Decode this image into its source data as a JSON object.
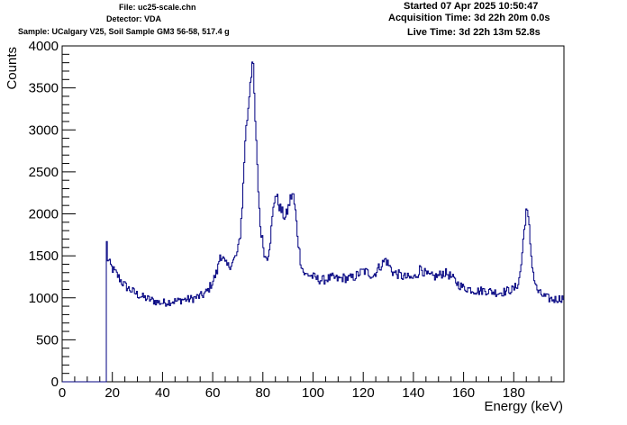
{
  "header": {
    "file": "File: uc25-scale.chn",
    "detector": "Detector: VDA",
    "sample": "Sample: UCalgary V25, Soil Sample GM3 56-58, 517.4 g",
    "started": "Started 07 Apr 2025 10:50:47",
    "acquisition": "Acquisition Time: 3d 22h 20m 0.0s",
    "live": "Live Time: 3d 22h 13m 52.8s"
  },
  "chart_data": {
    "type": "line",
    "xlabel": "Energy (keV)",
    "ylabel": "Counts",
    "xlim": [
      0,
      200
    ],
    "ylim": [
      0,
      4000
    ],
    "x_ticks": [
      0,
      20,
      40,
      60,
      80,
      100,
      120,
      140,
      160,
      180
    ],
    "y_ticks": [
      0,
      500,
      1000,
      1500,
      2000,
      2500,
      3000,
      3500,
      4000
    ],
    "line_color": "#000080",
    "series": [
      {
        "x": [
          0,
          17.5,
          17.6,
          17.8,
          18,
          19,
          20,
          22,
          24,
          26,
          28,
          30,
          32,
          34,
          36,
          38,
          40,
          42,
          44,
          46,
          48,
          50,
          52,
          54,
          56,
          58,
          60,
          62,
          63,
          64,
          65,
          66,
          68,
          70,
          71,
          72,
          73,
          74,
          75,
          76,
          77,
          78,
          79,
          80,
          81,
          82,
          83,
          84,
          85,
          86,
          87,
          88,
          89,
          90,
          91,
          92,
          93,
          94,
          95,
          96,
          97,
          98,
          100,
          102,
          104,
          106,
          108,
          110,
          112,
          114,
          116,
          118,
          120,
          122,
          124,
          126,
          128,
          129,
          130,
          132,
          134,
          136,
          138,
          140,
          142,
          143,
          144,
          146,
          148,
          150,
          152,
          154,
          156,
          158,
          160,
          162,
          164,
          166,
          168,
          170,
          172,
          174,
          176,
          178,
          180,
          182,
          183,
          184,
          185,
          186,
          187,
          188,
          189,
          190,
          192,
          194,
          196,
          198,
          200
        ],
        "values": [
          0,
          0,
          1880,
          1650,
          1480,
          1400,
          1350,
          1270,
          1180,
          1120,
          1080,
          1040,
          1010,
          990,
          970,
          950,
          940,
          950,
          960,
          960,
          980,
          980,
          990,
          1010,
          1030,
          1080,
          1190,
          1330,
          1520,
          1480,
          1400,
          1370,
          1420,
          1540,
          1760,
          2200,
          2900,
          3200,
          3600,
          3850,
          3100,
          2400,
          1850,
          1650,
          1480,
          1500,
          1700,
          2000,
          2250,
          2150,
          2060,
          2000,
          1950,
          2050,
          2180,
          2250,
          2020,
          1700,
          1450,
          1320,
          1270,
          1280,
          1250,
          1220,
          1210,
          1230,
          1240,
          1220,
          1240,
          1230,
          1240,
          1280,
          1320,
          1300,
          1260,
          1350,
          1420,
          1460,
          1400,
          1300,
          1280,
          1250,
          1240,
          1230,
          1300,
          1370,
          1310,
          1260,
          1250,
          1260,
          1300,
          1280,
          1220,
          1160,
          1120,
          1110,
          1090,
          1080,
          1090,
          1080,
          1070,
          1060,
          1070,
          1090,
          1100,
          1180,
          1400,
          1750,
          2050,
          1900,
          1500,
          1250,
          1120,
          1060,
          1020,
          990,
          980,
          990,
          1000
        ]
      }
    ]
  }
}
